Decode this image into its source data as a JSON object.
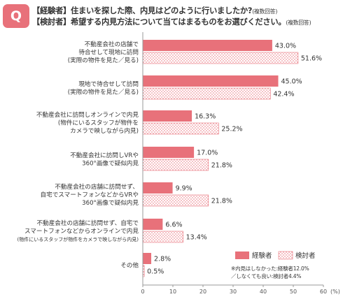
{
  "badge": "Q",
  "question": {
    "line1_label": "【経験者】",
    "line1_text": "住まいを探した際、内見はどのように行いましたか?",
    "line1_note": "(複数回答)",
    "line2_label": "【検討者】",
    "line2_text": "希望する内見方法について当てはまるものをお選びください。",
    "line2_note": "(複数回答)"
  },
  "legend": {
    "experienced": "経験者",
    "considering": "検討者"
  },
  "footnote": {
    "line1": "※内見はしなかった:経験者12.0%",
    "line2": "／しなくても良い:検討者4.4%"
  },
  "axis_unit": "(%)",
  "colors": {
    "experienced": "#e8717a",
    "considering_dots": "#e8717a",
    "axis": "#999999"
  },
  "chart_data": {
    "type": "bar",
    "orientation": "horizontal",
    "categories": [
      [
        "不動産会社の店舗で",
        "待合せして現地に訪問",
        "(実際の物件を見た／見る)"
      ],
      [
        "現地で待合せして訪問",
        "(実際の物件を見た／見る)"
      ],
      [
        "不動産会社に訪問しオンラインで内見",
        "(物件にいるスタッフが物件を",
        "カメラで映しながら内見)"
      ],
      [
        "不動産会社に訪問しVRや",
        "360°画像で疑似内見"
      ],
      [
        "不動産会社の店舗に訪問せず、",
        "自宅でスマートフォンなどからVRや",
        "360°画像で疑似内見"
      ],
      [
        "不動産会社の店舗に訪問せず、自宅で",
        "スマートフォンなどからオンラインで内見",
        "(物件にいるスタッフが物件をカメラで映しながら内見)"
      ],
      [
        "その他"
      ]
    ],
    "series": [
      {
        "name": "経験者",
        "values": [
          43.0,
          45.0,
          16.3,
          17.0,
          9.9,
          6.6,
          2.8
        ],
        "labels": [
          "43.0%",
          "45.0%",
          "16.3%",
          "17.0%",
          "9.9%",
          "6.6%",
          "2.8%"
        ]
      },
      {
        "name": "検討者",
        "values": [
          51.6,
          42.4,
          25.2,
          21.8,
          21.8,
          13.4,
          0.5
        ],
        "labels": [
          "51.6%",
          "42.4%",
          "25.2%",
          "21.8%",
          "21.8%",
          "13.4%",
          "0.5%"
        ]
      }
    ],
    "xlim": [
      0,
      60
    ],
    "xticks": [
      "0",
      "10",
      "20",
      "30",
      "40",
      "50",
      "60"
    ],
    "grid": false,
    "legend_position": "bottom-right"
  }
}
